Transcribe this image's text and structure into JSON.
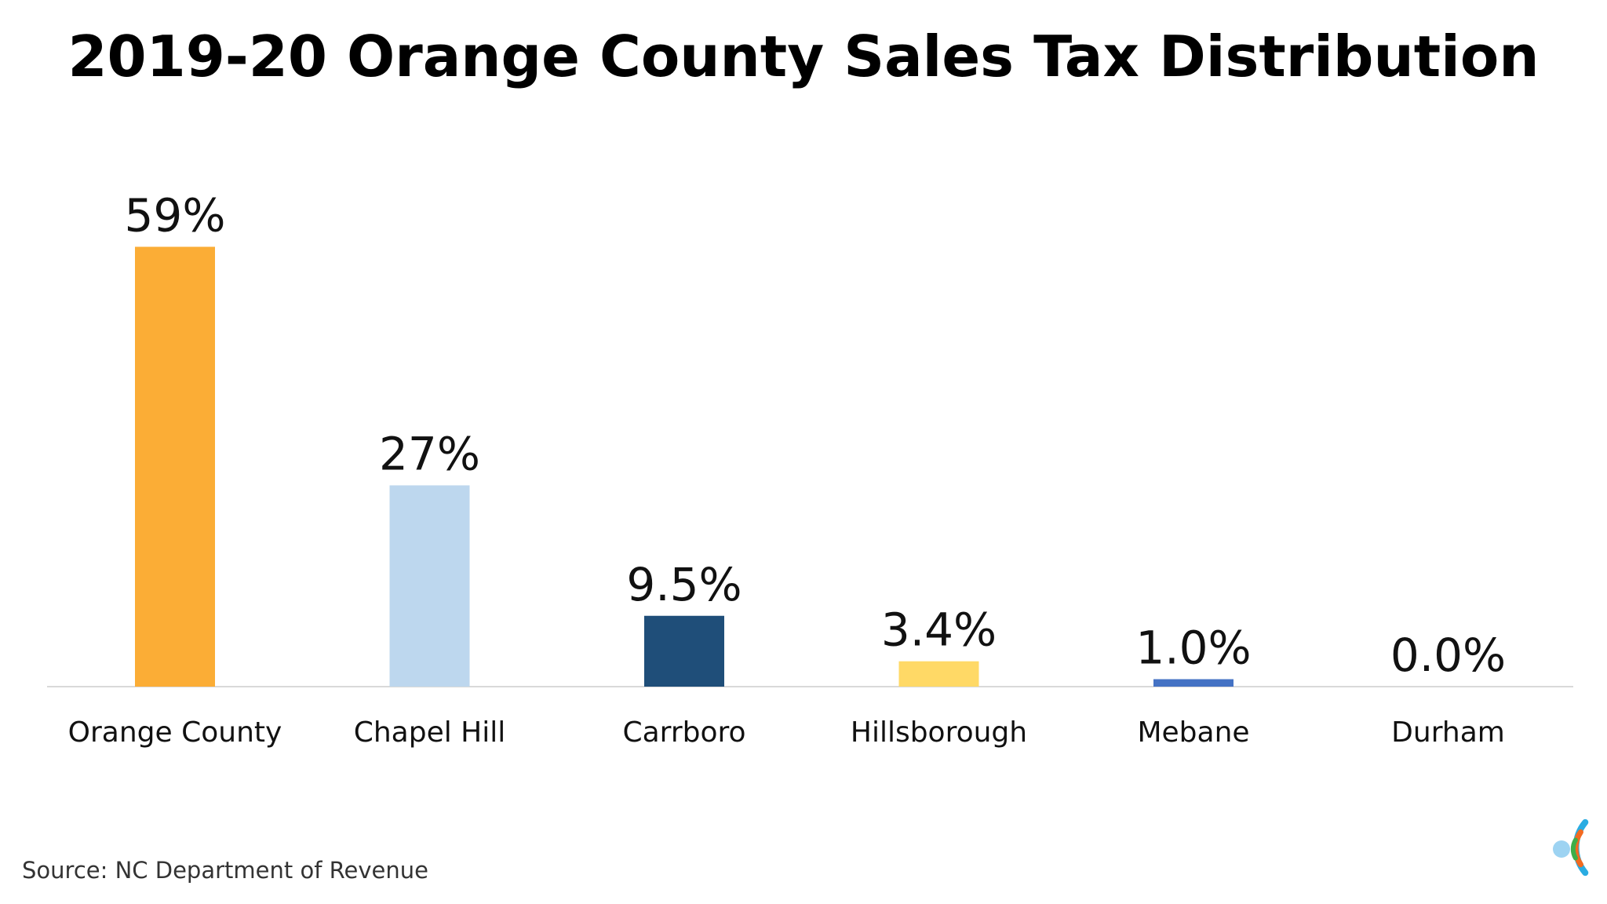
{
  "chart_data": {
    "type": "bar",
    "title": "2019-20 Orange County Sales Tax Distribution",
    "categories": [
      "Orange County",
      "Chapel Hill",
      "Carrboro",
      "Hillsborough",
      "Mebane",
      "Durham"
    ],
    "values": [
      59,
      27,
      9.5,
      3.4,
      1.0,
      0.0
    ],
    "data_labels": [
      "59%",
      "27%",
      "9.5%",
      "3.4%",
      "1.0%",
      "0.0%"
    ],
    "bar_colors": [
      "#FBAD36",
      "#BDD7EE",
      "#1F4E79",
      "#FFD966",
      "#4472C4",
      "#A5A5A5"
    ],
    "ylim": [
      0,
      60
    ],
    "xlabel": "",
    "ylabel": "",
    "grid": false,
    "legend": "none"
  },
  "source": "Source: NC Department of Revenue",
  "logo": {
    "icon": "concentric-c-logo-icon",
    "colors": [
      "#2AACE2",
      "#F26A21",
      "#3DAE49",
      "#9DD3F2"
    ]
  }
}
